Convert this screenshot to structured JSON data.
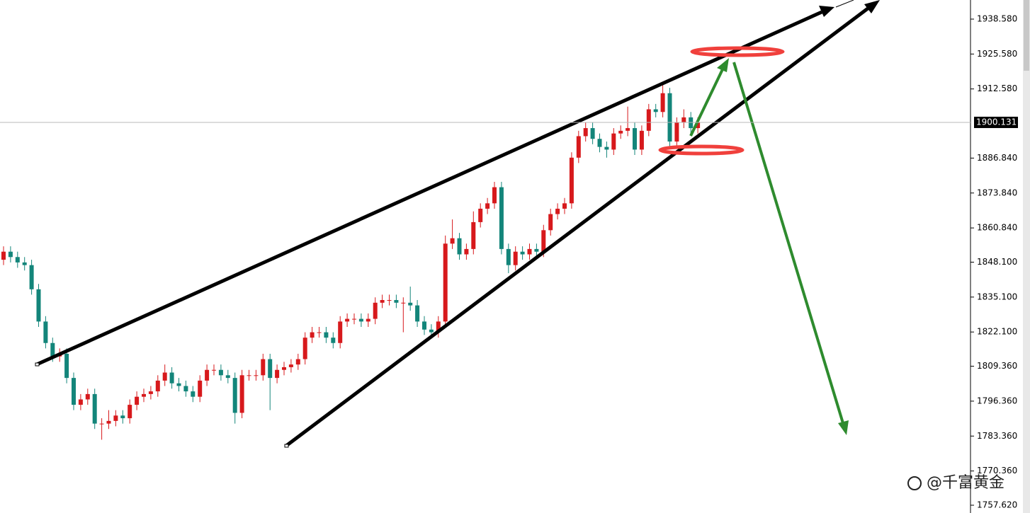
{
  "chart_data": {
    "type": "candlestick",
    "open": [
      1849,
      1852,
      1850,
      1848,
      1847,
      1838,
      1826,
      1818,
      1813,
      1814,
      1805,
      1795,
      1797,
      1799,
      1788,
      1788,
      1789,
      1791,
      1790,
      1795,
      1798,
      1799,
      1800,
      1804,
      1807,
      1803,
      1802,
      1800,
      1798,
      1804,
      1808,
      1808,
      1806,
      1805,
      1792,
      1806,
      1806,
      1806,
      1812,
      1805,
      1808,
      1809,
      1810,
      1812,
      1820,
      1822,
      1822,
      1820,
      1818,
      1826,
      1827,
      1827,
      1826,
      1827,
      1833,
      1834,
      1834,
      1833,
      1833,
      1832,
      1826,
      1823,
      1822,
      1826,
      1855,
      1857,
      1851,
      1853,
      1863,
      1868,
      1870,
      1876,
      1853,
      1847,
      1852,
      1851,
      1853,
      1852,
      1860,
      1866,
      1868,
      1870,
      1887,
      1895,
      1898,
      1894,
      1891,
      1890,
      1896,
      1897,
      1898,
      1890,
      1897,
      1905,
      1904,
      1911,
      1893,
      1900,
      1902,
      1898
    ],
    "high": [
      1854,
      1854,
      1852,
      1850,
      1849,
      1840,
      1828,
      1820,
      1816,
      1816,
      1807,
      1799,
      1801,
      1801,
      1790,
      1793,
      1793,
      1793,
      1797,
      1800,
      1801,
      1802,
      1806,
      1810,
      1809,
      1805,
      1804,
      1802,
      1806,
      1810,
      1810,
      1810,
      1808,
      1807,
      1808,
      1808,
      1808,
      1814,
      1814,
      1810,
      1811,
      1812,
      1814,
      1822,
      1824,
      1824,
      1824,
      1822,
      1828,
      1829,
      1829,
      1829,
      1829,
      1835,
      1836,
      1836,
      1836,
      1835,
      1839,
      1834,
      1828,
      1825,
      1828,
      1858,
      1864,
      1859,
      1855,
      1867,
      1870,
      1872,
      1878,
      1878,
      1855,
      1854,
      1854,
      1855,
      1855,
      1862,
      1868,
      1870,
      1872,
      1889,
      1897,
      1900,
      1900,
      1896,
      1893,
      1898,
      1899,
      1906,
      1900,
      1899,
      1907,
      1907,
      1914,
      1913,
      1902,
      1905,
      1904,
      1902
    ],
    "low": [
      1847,
      1848,
      1846,
      1845,
      1836,
      1824,
      1816,
      1811,
      1811,
      1803,
      1793,
      1793,
      1795,
      1786,
      1782,
      1786,
      1787,
      1788,
      1788,
      1793,
      1796,
      1797,
      1798,
      1802,
      1801,
      1800,
      1798,
      1796,
      1796,
      1802,
      1806,
      1804,
      1803,
      1788,
      1790,
      1804,
      1804,
      1804,
      1793,
      1803,
      1806,
      1807,
      1808,
      1810,
      1818,
      1820,
      1818,
      1816,
      1816,
      1824,
      1825,
      1824,
      1824,
      1825,
      1831,
      1832,
      1831,
      1822,
      1830,
      1824,
      1821,
      1820,
      1820,
      1824,
      1853,
      1849,
      1849,
      1851,
      1861,
      1866,
      1868,
      1851,
      1844,
      1845,
      1849,
      1849,
      1850,
      1850,
      1858,
      1864,
      1866,
      1868,
      1885,
      1893,
      1892,
      1889,
      1887,
      1888,
      1894,
      1895,
      1888,
      1888,
      1895,
      1902,
      1902,
      1891,
      1891,
      1898,
      1896,
      1896
    ],
    "close": [
      1852,
      1850,
      1848,
      1847,
      1838,
      1826,
      1818,
      1813,
      1814,
      1805,
      1795,
      1797,
      1799,
      1788,
      1788,
      1789,
      1791,
      1790,
      1795,
      1798,
      1799,
      1800,
      1804,
      1807,
      1803,
      1802,
      1800,
      1798,
      1804,
      1808,
      1808,
      1806,
      1805,
      1792,
      1806,
      1806,
      1806,
      1812,
      1805,
      1808,
      1809,
      1810,
      1812,
      1820,
      1822,
      1822,
      1820,
      1818,
      1826,
      1827,
      1827,
      1826,
      1827,
      1833,
      1834,
      1834,
      1833,
      1833,
      1832,
      1826,
      1823,
      1822,
      1826,
      1855,
      1857,
      1851,
      1853,
      1863,
      1868,
      1870,
      1876,
      1853,
      1847,
      1852,
      1851,
      1853,
      1852,
      1860,
      1866,
      1868,
      1870,
      1887,
      1895,
      1898,
      1894,
      1891,
      1890,
      1896,
      1897,
      1898,
      1890,
      1897,
      1905,
      1904,
      1911,
      1893,
      1900,
      1902,
      1898,
      1900
    ],
    "up_color": "#d7191c",
    "down_color": "#13857a",
    "ylim": [
      1754.72,
      1945.69
    ],
    "yticks": [
      {
        "value": 1938.58,
        "label": "1938.580"
      },
      {
        "value": 1925.58,
        "label": "1925.580"
      },
      {
        "value": 1912.58,
        "label": "1912.580"
      },
      {
        "value": 1886.84,
        "label": "1886.840"
      },
      {
        "value": 1873.84,
        "label": "1873.840"
      },
      {
        "value": 1860.84,
        "label": "1860.840"
      },
      {
        "value": 1848.1,
        "label": "1848.100"
      },
      {
        "value": 1835.1,
        "label": "1835.100"
      },
      {
        "value": 1822.1,
        "label": "1822.100"
      },
      {
        "value": 1809.36,
        "label": "1809.360"
      },
      {
        "value": 1796.36,
        "label": "1796.360"
      },
      {
        "value": 1783.36,
        "label": "1783.360"
      },
      {
        "value": 1770.36,
        "label": "1770.360"
      },
      {
        "value": 1757.62,
        "label": "1757.620"
      }
    ],
    "last_price": 1900.131
  },
  "watermark": "@千富黄金"
}
